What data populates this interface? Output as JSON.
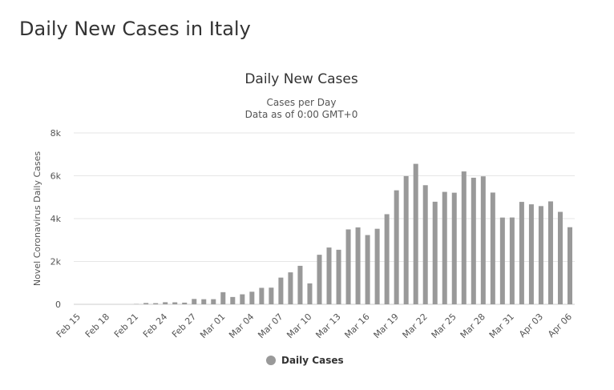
{
  "page": {
    "title": "Daily New Cases in Italy"
  },
  "chart_data": {
    "type": "bar",
    "title": "Daily New Cases",
    "subtitle_lines": [
      "Cases per Day",
      "Data as of 0:00 GMT+0"
    ],
    "xlabel": "",
    "ylabel": "Novel Coronavirus Daily Cases",
    "ylim": [
      0,
      8000
    ],
    "yticks": [
      0,
      2000,
      4000,
      6000,
      8000
    ],
    "ytick_labels": [
      "0",
      "2k",
      "4k",
      "6k",
      "8k"
    ],
    "categories": [
      "Feb 15",
      "Feb 16",
      "Feb 17",
      "Feb 18",
      "Feb 19",
      "Feb 20",
      "Feb 21",
      "Feb 22",
      "Feb 23",
      "Feb 24",
      "Feb 25",
      "Feb 26",
      "Feb 27",
      "Feb 28",
      "Feb 29",
      "Mar 01",
      "Mar 02",
      "Mar 03",
      "Mar 04",
      "Mar 05",
      "Mar 06",
      "Mar 07",
      "Mar 08",
      "Mar 09",
      "Mar 10",
      "Mar 11",
      "Mar 12",
      "Mar 13",
      "Mar 14",
      "Mar 15",
      "Mar 16",
      "Mar 17",
      "Mar 18",
      "Mar 19",
      "Mar 20",
      "Mar 21",
      "Mar 22",
      "Mar 23",
      "Mar 24",
      "Mar 25",
      "Mar 26",
      "Mar 27",
      "Mar 28",
      "Mar 29",
      "Mar 30",
      "Mar 31",
      "Apr 01",
      "Apr 02",
      "Apr 03",
      "Apr 04",
      "Apr 05",
      "Apr 06"
    ],
    "xtick_labels": [
      "Feb 15",
      "Feb 18",
      "Feb 21",
      "Feb 24",
      "Feb 27",
      "Mar 01",
      "Mar 04",
      "Mar 07",
      "Mar 10",
      "Mar 13",
      "Mar 16",
      "Mar 19",
      "Mar 22",
      "Mar 25",
      "Mar 28",
      "Mar 31",
      "Apr 03",
      "Apr 06"
    ],
    "series": [
      {
        "name": "Daily Cases",
        "color": "#999999",
        "values": [
          0,
          0,
          0,
          0,
          0,
          0,
          14,
          62,
          53,
          97,
          93,
          78,
          250,
          238,
          240,
          566,
          342,
          466,
          587,
          769,
          778,
          1247,
          1492,
          1797,
          977,
          2313,
          2651,
          2547,
          3497,
          3590,
          3233,
          3526,
          4207,
          5322,
          5986,
          6557,
          5560,
          4789,
          5249,
          5210,
          6203,
          5909,
          5974,
          5217,
          4050,
          4053,
          4782,
          4668,
          4585,
          4805,
          4316,
          3599
        ]
      }
    ],
    "grid": true,
    "legend": "bottom-center"
  }
}
